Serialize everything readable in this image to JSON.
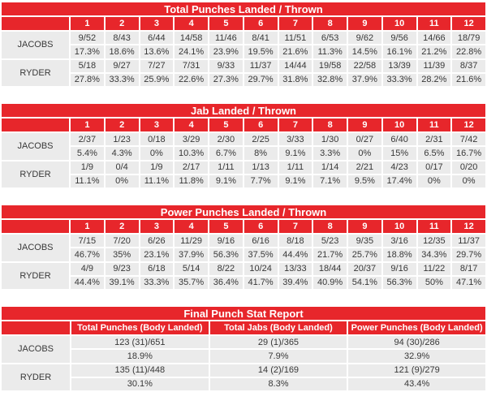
{
  "colors": {
    "accent_red": "#e7262b",
    "row_gray": "#ebebeb",
    "data_text": "#383838",
    "header_text": "#ffffff"
  },
  "chart_data": [
    {
      "type": "table",
      "title": "Total Punches Landed / Thrown",
      "columns": [
        "1",
        "2",
        "3",
        "4",
        "5",
        "6",
        "7",
        "8",
        "9",
        "10",
        "11",
        "12"
      ],
      "rows": [
        {
          "name": "JACOBS",
          "values": [
            "9/52",
            "8/43",
            "6/44",
            "14/58",
            "11/46",
            "8/41",
            "11/51",
            "6/53",
            "9/62",
            "9/56",
            "14/66",
            "18/79"
          ],
          "percents": [
            "17.3%",
            "18.6%",
            "13.6%",
            "24.1%",
            "23.9%",
            "19.5%",
            "21.6%",
            "11.3%",
            "14.5%",
            "16.1%",
            "21.2%",
            "22.8%"
          ]
        },
        {
          "name": "RYDER",
          "values": [
            "5/18",
            "9/27",
            "7/27",
            "7/31",
            "9/33",
            "11/37",
            "14/44",
            "19/58",
            "22/58",
            "13/39",
            "11/39",
            "8/37"
          ],
          "percents": [
            "27.8%",
            "33.3%",
            "25.9%",
            "22.6%",
            "27.3%",
            "29.7%",
            "31.8%",
            "32.8%",
            "37.9%",
            "33.3%",
            "28.2%",
            "21.6%"
          ]
        }
      ]
    },
    {
      "type": "table",
      "title": "Jab Landed / Thrown",
      "columns": [
        "1",
        "2",
        "3",
        "4",
        "5",
        "6",
        "7",
        "8",
        "9",
        "10",
        "11",
        "12"
      ],
      "rows": [
        {
          "name": "JACOBS",
          "values": [
            "2/37",
            "1/23",
            "0/18",
            "3/29",
            "2/30",
            "2/25",
            "3/33",
            "1/30",
            "0/27",
            "6/40",
            "2/31",
            "7/42"
          ],
          "percents": [
            "5.4%",
            "4.3%",
            "0%",
            "10.3%",
            "6.7%",
            "8%",
            "9.1%",
            "3.3%",
            "0%",
            "15%",
            "6.5%",
            "16.7%"
          ]
        },
        {
          "name": "RYDER",
          "values": [
            "1/9",
            "0/4",
            "1/9",
            "2/17",
            "1/11",
            "1/13",
            "1/11",
            "1/14",
            "2/21",
            "4/23",
            "0/17",
            "0/20"
          ],
          "percents": [
            "11.1%",
            "0%",
            "11.1%",
            "11.8%",
            "9.1%",
            "7.7%",
            "9.1%",
            "7.1%",
            "9.5%",
            "17.4%",
            "0%",
            "0%"
          ]
        }
      ]
    },
    {
      "type": "table",
      "title": "Power Punches Landed / Thrown",
      "columns": [
        "1",
        "2",
        "3",
        "4",
        "5",
        "6",
        "7",
        "8",
        "9",
        "10",
        "11",
        "12"
      ],
      "rows": [
        {
          "name": "JACOBS",
          "values": [
            "7/15",
            "7/20",
            "6/26",
            "11/29",
            "9/16",
            "6/16",
            "8/18",
            "5/23",
            "9/35",
            "3/16",
            "12/35",
            "11/37"
          ],
          "percents": [
            "46.7%",
            "35%",
            "23.1%",
            "37.9%",
            "56.3%",
            "37.5%",
            "44.4%",
            "21.7%",
            "25.7%",
            "18.8%",
            "34.3%",
            "29.7%"
          ]
        },
        {
          "name": "RYDER",
          "values": [
            "4/9",
            "9/23",
            "6/18",
            "5/14",
            "8/22",
            "10/24",
            "13/33",
            "18/44",
            "20/37",
            "9/16",
            "11/22",
            "8/17"
          ],
          "percents": [
            "44.4%",
            "39.1%",
            "33.3%",
            "35.7%",
            "36.4%",
            "41.7%",
            "39.4%",
            "40.9%",
            "54.1%",
            "56.3%",
            "50%",
            "47.1%"
          ]
        }
      ]
    },
    {
      "type": "table",
      "title": "Final Punch Stat Report",
      "columns": [
        "Total Punches (Body Landed)",
        "Total Jabs (Body Landed)",
        "Power Punches (Body Landed)"
      ],
      "rows": [
        {
          "name": "JACOBS",
          "values": [
            "123 (31)/651",
            "29 (1)/365",
            "94 (30)/286"
          ],
          "percents": [
            "18.9%",
            "7.9%",
            "32.9%"
          ]
        },
        {
          "name": "RYDER",
          "values": [
            "135 (11)/448",
            "14 (2)/169",
            "121 (9)/279"
          ],
          "percents": [
            "30.1%",
            "8.3%",
            "43.4%"
          ]
        }
      ]
    }
  ]
}
